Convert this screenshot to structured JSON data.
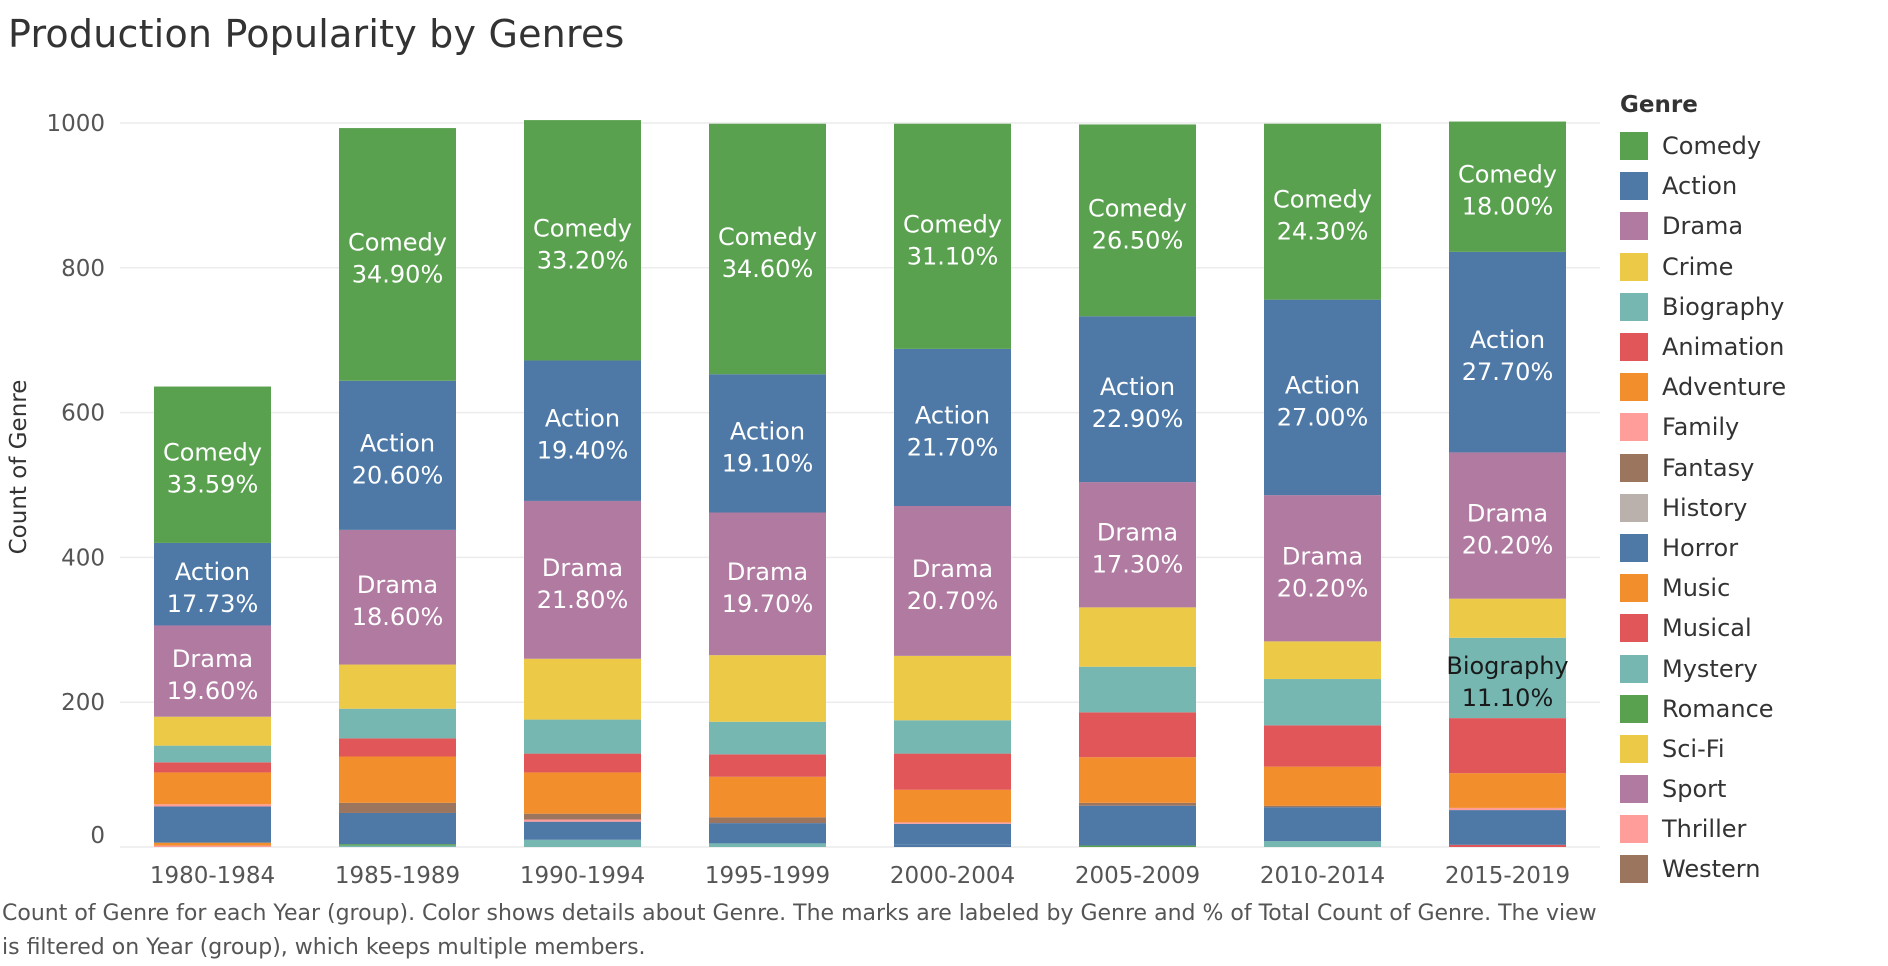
{
  "title": "Production Popularity by Genres",
  "caption": "Count of Genre for each Year (group).  Color shows details about Genre.  The marks are labeled by Genre and % of Total Count of Genre. The view is filtered on Year (group), which keeps multiple members.",
  "chart_data": {
    "type": "bar",
    "stacked": true,
    "title": "Production Popularity by Genres",
    "xlabel": "",
    "ylabel": "Count of Genre",
    "ylim": [
      0,
      1000
    ],
    "yticks": [
      0,
      200,
      400,
      600,
      800,
      1000
    ],
    "grid": true,
    "legend_position": "right",
    "legend_title": "Genre",
    "categories": [
      "1980-1984",
      "1985-1989",
      "1990-1994",
      "1995-1999",
      "2000-2004",
      "2005-2009",
      "2010-2014",
      "2015-2019"
    ],
    "series": [
      {
        "name": "Thriller",
        "color": "#FF9D9A",
        "values": [
          2,
          0,
          0,
          0,
          0,
          0,
          0,
          0
        ]
      },
      {
        "name": "Adventure",
        "color": "#F28E2B",
        "values": [
          4,
          0,
          0,
          0,
          0,
          0,
          0,
          0
        ]
      },
      {
        "name": "Animation",
        "color": "#E15759",
        "values": [
          0,
          0,
          0,
          0,
          0,
          0,
          0,
          3
        ]
      },
      {
        "name": "Mystery",
        "color": "#76B7B2",
        "values": [
          0,
          2,
          0,
          0,
          0,
          0,
          0,
          0
        ]
      },
      {
        "name": "Comedy",
        "color": "#59A14F",
        "values": [
          0,
          2,
          0,
          0,
          0,
          0,
          0,
          0
        ]
      },
      {
        "name": "Romance",
        "color": "#59A14F",
        "values": [
          0,
          0,
          0,
          0,
          0,
          2,
          0,
          0
        ]
      },
      {
        "name": "Fantasy",
        "color": "#9C755F",
        "values": [
          0,
          0,
          0,
          0,
          0,
          0,
          0,
          0
        ]
      },
      {
        "name": "Biography",
        "color": "#76B7B2",
        "values": [
          0,
          0,
          10,
          5,
          0,
          0,
          8,
          0
        ]
      },
      {
        "name": "Horror",
        "color": "#4E79A7",
        "values": [
          0,
          0,
          0,
          0,
          3,
          0,
          0,
          0
        ]
      },
      {
        "name": "Action",
        "color": "#4E79A7",
        "values": [
          50,
          43,
          25,
          28,
          29,
          55,
          47,
          48
        ]
      },
      {
        "name": "Family",
        "color": "#FF9D9A",
        "values": [
          3,
          0,
          3,
          0,
          2,
          0,
          0,
          3
        ]
      },
      {
        "name": "Fantasy",
        "color": "#9C755F",
        "values": [
          0,
          14,
          8,
          8,
          0,
          4,
          2,
          0
        ]
      },
      {
        "name": "Adventure",
        "color": "#F28E2B",
        "values": [
          44,
          64,
          57,
          56,
          45,
          63,
          54,
          48
        ]
      },
      {
        "name": "Animation",
        "color": "#E15759",
        "values": [
          14,
          25,
          26,
          31,
          50,
          62,
          57,
          76
        ]
      },
      {
        "name": "Biography",
        "color": "#76B7B2",
        "values": [
          23,
          41,
          47,
          45,
          46,
          63,
          64,
          111
        ]
      },
      {
        "name": "Crime",
        "color": "#EDC948",
        "values": [
          40,
          61,
          84,
          92,
          89,
          82,
          52,
          54
        ]
      },
      {
        "name": "Drama",
        "color": "#B07AA1",
        "values": [
          126,
          186,
          218,
          197,
          207,
          173,
          202,
          202
        ]
      },
      {
        "name": "Action",
        "color": "#4E79A7",
        "values": [
          114,
          206,
          194,
          191,
          217,
          229,
          270,
          277
        ]
      },
      {
        "name": "Comedy",
        "color": "#59A14F",
        "values": [
          216,
          349,
          332,
          346,
          311,
          265,
          243,
          180
        ]
      }
    ],
    "data_labels": [
      [
        {
          "genre": "Drama",
          "pct": "19.60%"
        },
        {
          "genre": "Action",
          "pct": "17.73%"
        },
        {
          "genre": "Comedy",
          "pct": "33.59%"
        }
      ],
      [
        {
          "genre": "Drama",
          "pct": "18.60%"
        },
        {
          "genre": "Action",
          "pct": "20.60%"
        },
        {
          "genre": "Comedy",
          "pct": "34.90%"
        }
      ],
      [
        {
          "genre": "Drama",
          "pct": "21.80%"
        },
        {
          "genre": "Action",
          "pct": "19.40%"
        },
        {
          "genre": "Comedy",
          "pct": "33.20%"
        }
      ],
      [
        {
          "genre": "Drama",
          "pct": "19.70%"
        },
        {
          "genre": "Action",
          "pct": "19.10%"
        },
        {
          "genre": "Comedy",
          "pct": "34.60%"
        }
      ],
      [
        {
          "genre": "Drama",
          "pct": "20.70%"
        },
        {
          "genre": "Action",
          "pct": "21.70%"
        },
        {
          "genre": "Comedy",
          "pct": "31.10%"
        }
      ],
      [
        {
          "genre": "Drama",
          "pct": "17.30%"
        },
        {
          "genre": "Action",
          "pct": "22.90%"
        },
        {
          "genre": "Comedy",
          "pct": "26.50%"
        }
      ],
      [
        {
          "genre": "Drama",
          "pct": "20.20%"
        },
        {
          "genre": "Action",
          "pct": "27.00%"
        },
        {
          "genre": "Comedy",
          "pct": "24.30%"
        }
      ],
      [
        {
          "genre": "Biography",
          "pct": "11.10%"
        },
        {
          "genre": "Drama",
          "pct": "20.20%"
        },
        {
          "genre": "Action",
          "pct": "27.70%"
        },
        {
          "genre": "Comedy",
          "pct": "18.00%"
        }
      ]
    ]
  },
  "legend": {
    "title": "Genre",
    "items": [
      {
        "label": "Comedy",
        "color": "#59A14F"
      },
      {
        "label": "Action",
        "color": "#4E79A7"
      },
      {
        "label": "Drama",
        "color": "#B07AA1"
      },
      {
        "label": "Crime",
        "color": "#EDC948"
      },
      {
        "label": "Biography",
        "color": "#76B7B2"
      },
      {
        "label": "Animation",
        "color": "#E15759"
      },
      {
        "label": "Adventure",
        "color": "#F28E2B"
      },
      {
        "label": "Family",
        "color": "#FF9D9A"
      },
      {
        "label": "Fantasy",
        "color": "#9C755F"
      },
      {
        "label": "History",
        "color": "#BAB0AC"
      },
      {
        "label": "Horror",
        "color": "#4E79A7"
      },
      {
        "label": "Music",
        "color": "#F28E2B"
      },
      {
        "label": "Musical",
        "color": "#E15759"
      },
      {
        "label": "Mystery",
        "color": "#76B7B2"
      },
      {
        "label": "Romance",
        "color": "#59A14F"
      },
      {
        "label": "Sci-Fi",
        "color": "#EDC948"
      },
      {
        "label": "Sport",
        "color": "#B07AA1"
      },
      {
        "label": "Thriller",
        "color": "#FF9D9A"
      },
      {
        "label": "Western",
        "color": "#9C755F"
      }
    ]
  }
}
